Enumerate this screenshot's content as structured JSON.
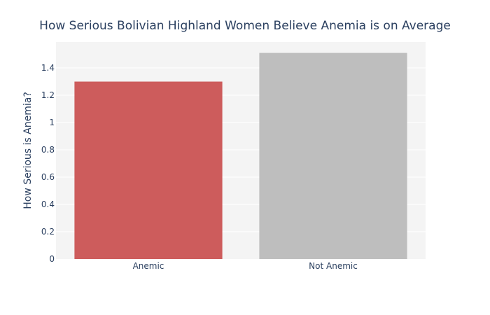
{
  "chart_data": {
    "type": "bar",
    "title": "How Serious Bolivian Highland Women Believe Anemia is on Average",
    "xlabel": "",
    "ylabel": "How Serious is Anemia?",
    "categories": [
      "Anemic",
      "Not Anemic"
    ],
    "values": [
      1.3,
      1.51
    ],
    "bar_colors": [
      "#cd5c5c",
      "#bebebe"
    ],
    "ylim": [
      0,
      1.59
    ],
    "yticks": [
      0,
      0.2,
      0.4,
      0.6,
      0.8,
      1,
      1.2,
      1.4
    ],
    "ytick_labels": [
      "0",
      "0.2",
      "0.4",
      "0.6",
      "0.8",
      "1",
      "1.2",
      "1.4"
    ],
    "grid": true,
    "plot_background": "#f4f4f4",
    "legend": "none"
  }
}
